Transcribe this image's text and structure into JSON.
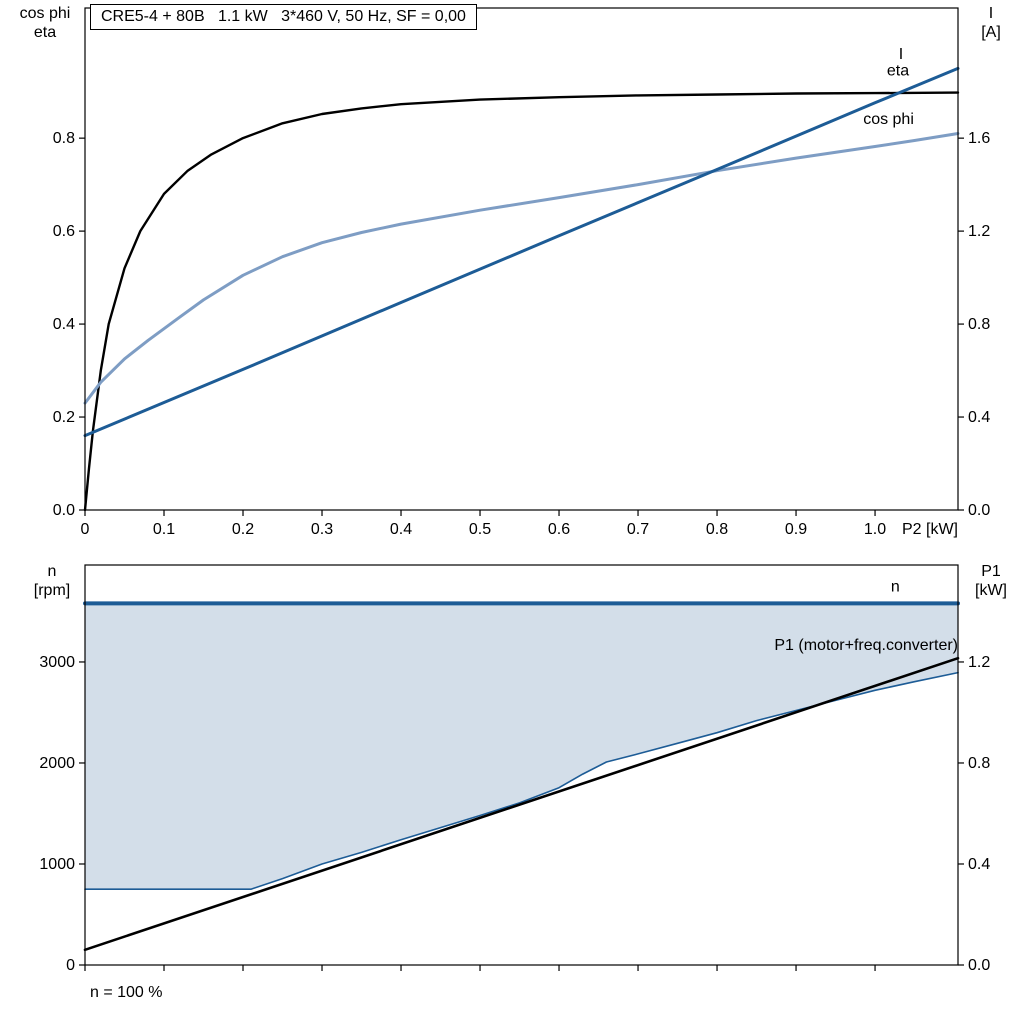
{
  "footer": {
    "note": "n = 100 %"
  },
  "chart_data": [
    {
      "id": "motor-performance",
      "type": "line",
      "title": "CRE5-4 + 80B   1.1 kW   3*460 V, 50 Hz, SF = 0,00",
      "x": {
        "lim": [
          0,
          1.105
        ],
        "end_label": "P2 [kW]",
        "show_tick_labels": true,
        "ticks": [
          [
            0,
            "0"
          ],
          [
            0.1,
            "0.1"
          ],
          [
            0.2,
            "0.2"
          ],
          [
            0.3,
            "0.3"
          ],
          [
            0.4,
            "0.4"
          ],
          [
            0.5,
            "0.5"
          ],
          [
            0.6,
            "0.6"
          ],
          [
            0.7,
            "0.7"
          ],
          [
            0.8,
            "0.8"
          ],
          [
            0.9,
            "0.9"
          ],
          [
            1.0,
            "1.0"
          ]
        ]
      },
      "left": {
        "label": [
          "cos phi",
          "eta"
        ],
        "lim": [
          0,
          1.08
        ],
        "ticks": [
          [
            0,
            "0.0"
          ],
          [
            0.2,
            "0.2"
          ],
          [
            0.4,
            "0.4"
          ],
          [
            0.6,
            "0.6"
          ],
          [
            0.8,
            "0.8"
          ]
        ]
      },
      "right": {
        "label": [
          "I",
          "[A]"
        ],
        "lim": [
          0,
          2.16
        ],
        "ticks": [
          [
            0,
            "0.0"
          ],
          [
            0.4,
            "0.4"
          ],
          [
            0.8,
            "0.8"
          ],
          [
            1.2,
            "1.2"
          ],
          [
            1.6,
            "1.6"
          ]
        ]
      },
      "series": [
        {
          "name": "eta",
          "axis": "left",
          "color": "#000000",
          "width": 2.4,
          "points": [
            [
              0,
              0
            ],
            [
              0.005,
              0.09
            ],
            [
              0.01,
              0.17
            ],
            [
              0.02,
              0.3
            ],
            [
              0.03,
              0.4
            ],
            [
              0.05,
              0.52
            ],
            [
              0.07,
              0.6
            ],
            [
              0.1,
              0.68
            ],
            [
              0.13,
              0.73
            ],
            [
              0.16,
              0.765
            ],
            [
              0.2,
              0.8
            ],
            [
              0.25,
              0.832
            ],
            [
              0.3,
              0.852
            ],
            [
              0.35,
              0.864
            ],
            [
              0.4,
              0.873
            ],
            [
              0.5,
              0.883
            ],
            [
              0.6,
              0.888
            ],
            [
              0.7,
              0.892
            ],
            [
              0.8,
              0.894
            ],
            [
              0.9,
              0.896
            ],
            [
              1.0,
              0.897
            ],
            [
              1.105,
              0.898
            ]
          ],
          "label": {
            "text": "eta",
            "x": 1.015,
            "y": 0.935,
            "anchor": "start"
          }
        },
        {
          "name": "cos phi",
          "axis": "left",
          "color": "#7e9dc4",
          "width": 3,
          "points": [
            [
              0,
              0.23
            ],
            [
              0.02,
              0.275
            ],
            [
              0.05,
              0.325
            ],
            [
              0.08,
              0.365
            ],
            [
              0.1,
              0.39
            ],
            [
              0.12,
              0.415
            ],
            [
              0.15,
              0.452
            ],
            [
              0.2,
              0.505
            ],
            [
              0.25,
              0.545
            ],
            [
              0.3,
              0.575
            ],
            [
              0.35,
              0.597
            ],
            [
              0.4,
              0.615
            ],
            [
              0.5,
              0.645
            ],
            [
              0.6,
              0.672
            ],
            [
              0.7,
              0.7
            ],
            [
              0.8,
              0.73
            ],
            [
              0.9,
              0.757
            ],
            [
              1.0,
              0.782
            ],
            [
              1.05,
              0.795
            ],
            [
              1.105,
              0.81
            ]
          ],
          "label": {
            "text": "cos phi",
            "x": 0.985,
            "y": 0.83,
            "anchor": "start"
          }
        },
        {
          "name": "I",
          "axis": "right",
          "color": "#1d5c96",
          "width": 3,
          "points": [
            [
              0,
              0.32
            ],
            [
              0.2,
              0.605
            ],
            [
              0.4,
              0.893
            ],
            [
              0.6,
              1.18
            ],
            [
              0.8,
              1.465
            ],
            [
              1.0,
              1.752
            ],
            [
              1.105,
              1.9
            ]
          ],
          "label": {
            "text": "I",
            "x": 1.03,
            "y": 1.94,
            "anchor": "start"
          }
        }
      ]
    },
    {
      "id": "speed-and-input-power",
      "type": "line",
      "x": {
        "lim": [
          0,
          1.105
        ],
        "show_tick_labels": false,
        "ticks": [
          [
            0,
            ""
          ],
          [
            0.1,
            ""
          ],
          [
            0.2,
            ""
          ],
          [
            0.3,
            ""
          ],
          [
            0.4,
            ""
          ],
          [
            0.5,
            ""
          ],
          [
            0.6,
            ""
          ],
          [
            0.7,
            ""
          ],
          [
            0.8,
            ""
          ],
          [
            0.9,
            ""
          ],
          [
            1.0,
            ""
          ]
        ]
      },
      "left": {
        "label": [
          "n",
          "[rpm]"
        ],
        "lim": [
          0,
          3960
        ],
        "ticks": [
          [
            0,
            "0"
          ],
          [
            1000,
            "1000"
          ],
          [
            2000,
            "2000"
          ],
          [
            3000,
            "3000"
          ]
        ]
      },
      "right": {
        "label": [
          "P1",
          "[kW]"
        ],
        "lim": [
          0,
          1.584
        ],
        "ticks": [
          [
            0,
            "0.0"
          ],
          [
            0.4,
            "0.4"
          ],
          [
            0.8,
            "0.8"
          ],
          [
            1.2,
            "1.2"
          ]
        ]
      },
      "band": {
        "name": "speed-range",
        "color": "#d3dee9",
        "top": 3580,
        "bottom_series": "n min"
      },
      "series": [
        {
          "name": "n min",
          "axis": "left",
          "color": "#1d5c96",
          "width": 1.6,
          "points": [
            [
              0,
              750
            ],
            [
              0.21,
              750
            ],
            [
              0.25,
              855
            ],
            [
              0.3,
              1000
            ],
            [
              0.35,
              1115
            ],
            [
              0.4,
              1240
            ],
            [
              0.45,
              1360
            ],
            [
              0.5,
              1480
            ],
            [
              0.55,
              1605
            ],
            [
              0.6,
              1755
            ],
            [
              0.63,
              1890
            ],
            [
              0.66,
              2010
            ],
            [
              0.7,
              2090
            ],
            [
              0.75,
              2195
            ],
            [
              0.8,
              2300
            ],
            [
              0.85,
              2420
            ],
            [
              0.9,
              2520
            ],
            [
              0.95,
              2620
            ],
            [
              1.0,
              2720
            ],
            [
              1.05,
              2805
            ],
            [
              1.105,
              2895
            ]
          ]
        },
        {
          "name": "P1",
          "axis": "right",
          "color": "#000000",
          "width": 2.6,
          "points": [
            [
              0,
              0.06
            ],
            [
              1.105,
              1.215
            ]
          ],
          "label": {
            "text": "P1 (motor+freq.converter)",
            "x": 1.105,
            "y": 1.247,
            "anchor": "end"
          }
        },
        {
          "name": "n",
          "axis": "left",
          "color": "#1d5c96",
          "width": 4,
          "points": [
            [
              0,
              3580
            ],
            [
              1.105,
              3580
            ]
          ],
          "label": {
            "text": "n",
            "x": 1.02,
            "y": 3700,
            "anchor": "start"
          }
        }
      ]
    }
  ]
}
